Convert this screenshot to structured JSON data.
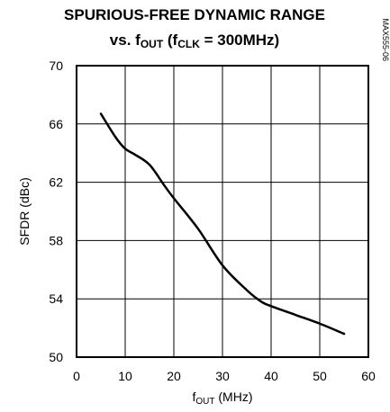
{
  "chart_data": {
    "type": "line",
    "title_line1": "SPURIOUS-FREE DYNAMIC RANGE",
    "title_line2_prefix": "vs. f",
    "title_line2_sub": "OUT",
    "title_line2_mid": " (f",
    "title_line2_sub2": "CLK",
    "title_line2_suffix": " = 300MHz)",
    "xlabel_prefix": "f",
    "xlabel_sub": "OUT",
    "xlabel_suffix": " (MHz)",
    "ylabel": "SFDR (dBc)",
    "figure_code": "MAX555-06",
    "xlim": [
      0,
      60
    ],
    "ylim": [
      50,
      70
    ],
    "x_ticks": [
      0,
      10,
      20,
      30,
      40,
      50,
      60
    ],
    "y_ticks": [
      50,
      54,
      58,
      62,
      66,
      70
    ],
    "grid": true,
    "series": [
      {
        "x": [
          5,
          8,
          10,
          12,
          15,
          18,
          20,
          25,
          30,
          35,
          38,
          40,
          45,
          50,
          55
        ],
        "y": [
          66.7,
          65.1,
          64.3,
          63.9,
          63.2,
          61.8,
          60.9,
          58.8,
          56.3,
          54.6,
          53.8,
          53.5,
          52.9,
          52.3,
          51.6
        ]
      }
    ]
  }
}
